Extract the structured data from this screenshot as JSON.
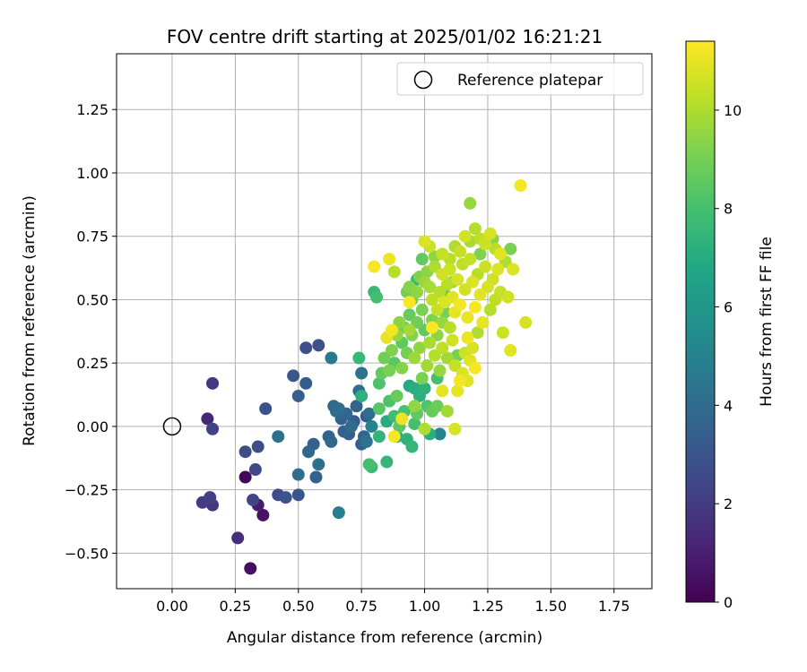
{
  "chart_data": {
    "type": "scatter",
    "title": "FOV centre drift starting at 2025/01/02 16:21:21",
    "xlabel": "Angular distance from reference (arcmin)",
    "ylabel": "Rotation from reference (arcmin)",
    "xlim": [
      -0.22,
      1.9
    ],
    "ylim": [
      -0.64,
      1.47
    ],
    "x_ticks": [
      0.0,
      0.25,
      0.5,
      0.75,
      1.0,
      1.25,
      1.5,
      1.75
    ],
    "x_tick_labels": [
      "0.00",
      "0.25",
      "0.50",
      "0.75",
      "1.00",
      "1.25",
      "1.50",
      "1.75"
    ],
    "y_ticks": [
      -0.5,
      -0.25,
      0.0,
      0.25,
      0.5,
      0.75,
      1.0,
      1.25
    ],
    "y_tick_labels": [
      "−0.50",
      "−0.25",
      "0.00",
      "0.25",
      "0.50",
      "0.75",
      "1.00",
      "1.25"
    ],
    "grid": true,
    "legend": {
      "placement": "top-right",
      "entries": [
        "Reference platepar"
      ]
    },
    "colorbar": {
      "label": "Hours from first FF file",
      "colormap": "viridis",
      "range": [
        0,
        11.4
      ],
      "ticks": [
        0,
        2,
        4,
        6,
        8,
        10
      ],
      "tick_labels": [
        "0",
        "2",
        "4",
        "6",
        "8",
        "10"
      ]
    },
    "reference_point": {
      "x": 0.0,
      "y": 0.0
    },
    "points": [
      {
        "x": 0.29,
        "y": -0.2,
        "c": 0.2
      },
      {
        "x": 0.31,
        "y": -0.56,
        "c": 0.5
      },
      {
        "x": 0.36,
        "y": -0.35,
        "c": 0.6
      },
      {
        "x": 0.34,
        "y": -0.31,
        "c": 0.9
      },
      {
        "x": 0.14,
        "y": 0.03,
        "c": 1.3
      },
      {
        "x": 0.26,
        "y": -0.44,
        "c": 1.5
      },
      {
        "x": 0.16,
        "y": -0.31,
        "c": 1.8
      },
      {
        "x": 0.12,
        "y": -0.3,
        "c": 2.0
      },
      {
        "x": 0.15,
        "y": -0.28,
        "c": 2.1
      },
      {
        "x": 0.16,
        "y": 0.17,
        "c": 1.9
      },
      {
        "x": 0.16,
        "y": -0.01,
        "c": 2.2
      },
      {
        "x": 0.32,
        "y": -0.29,
        "c": 2.3
      },
      {
        "x": 0.33,
        "y": -0.17,
        "c": 2.5
      },
      {
        "x": 0.29,
        "y": -0.1,
        "c": 2.6
      },
      {
        "x": 0.34,
        "y": -0.08,
        "c": 2.7
      },
      {
        "x": 0.42,
        "y": -0.27,
        "c": 2.6
      },
      {
        "x": 0.37,
        "y": 0.07,
        "c": 2.9
      },
      {
        "x": 0.45,
        "y": -0.28,
        "c": 3.0
      },
      {
        "x": 0.5,
        "y": -0.27,
        "c": 3.0
      },
      {
        "x": 0.53,
        "y": 0.31,
        "c": 2.7
      },
      {
        "x": 0.58,
        "y": 0.32,
        "c": 2.8
      },
      {
        "x": 0.48,
        "y": 0.2,
        "c": 3.1
      },
      {
        "x": 0.53,
        "y": 0.17,
        "c": 3.3
      },
      {
        "x": 0.5,
        "y": 0.12,
        "c": 3.4
      },
      {
        "x": 0.42,
        "y": -0.04,
        "c": 4.2
      },
      {
        "x": 0.5,
        "y": -0.19,
        "c": 4.1
      },
      {
        "x": 0.54,
        "y": -0.1,
        "c": 3.8
      },
      {
        "x": 0.56,
        "y": -0.07,
        "c": 3.5
      },
      {
        "x": 0.57,
        "y": -0.2,
        "c": 3.6
      },
      {
        "x": 0.58,
        "y": -0.15,
        "c": 4.2
      },
      {
        "x": 0.62,
        "y": -0.04,
        "c": 3.7
      },
      {
        "x": 0.63,
        "y": -0.06,
        "c": 3.8
      },
      {
        "x": 0.64,
        "y": 0.08,
        "c": 3.9
      },
      {
        "x": 0.65,
        "y": 0.06,
        "c": 4.0
      },
      {
        "x": 0.66,
        "y": 0.07,
        "c": 4.1
      },
      {
        "x": 0.67,
        "y": 0.03,
        "c": 3.5
      },
      {
        "x": 0.68,
        "y": -0.02,
        "c": 3.6
      },
      {
        "x": 0.69,
        "y": 0.05,
        "c": 3.8
      },
      {
        "x": 0.7,
        "y": -0.03,
        "c": 3.4
      },
      {
        "x": 0.71,
        "y": 0.0,
        "c": 3.9
      },
      {
        "x": 0.72,
        "y": 0.02,
        "c": 3.3
      },
      {
        "x": 0.73,
        "y": 0.08,
        "c": 3.6
      },
      {
        "x": 0.74,
        "y": 0.14,
        "c": 4.1
      },
      {
        "x": 0.75,
        "y": -0.07,
        "c": 3.4
      },
      {
        "x": 0.76,
        "y": -0.04,
        "c": 3.7
      },
      {
        "x": 0.77,
        "y": 0.04,
        "c": 3.2
      },
      {
        "x": 0.78,
        "y": 0.05,
        "c": 4.0
      },
      {
        "x": 0.66,
        "y": -0.34,
        "c": 4.8
      },
      {
        "x": 0.63,
        "y": 0.27,
        "c": 4.6
      },
      {
        "x": 0.75,
        "y": 0.21,
        "c": 4.3
      },
      {
        "x": 0.74,
        "y": 0.27,
        "c": 7.6
      },
      {
        "x": 0.75,
        "y": 0.12,
        "c": 7.2
      },
      {
        "x": 0.77,
        "y": -0.06,
        "c": 4.4
      },
      {
        "x": 0.79,
        "y": 0.0,
        "c": 5.0
      },
      {
        "x": 0.82,
        "y": -0.04,
        "c": 7.4
      },
      {
        "x": 0.8,
        "y": 0.53,
        "c": 7.6
      },
      {
        "x": 0.81,
        "y": 0.51,
        "c": 7.9
      },
      {
        "x": 0.78,
        "y": -0.15,
        "c": 8.0
      },
      {
        "x": 0.79,
        "y": -0.16,
        "c": 7.7
      },
      {
        "x": 0.85,
        "y": -0.14,
        "c": 7.5
      },
      {
        "x": 0.85,
        "y": 0.02,
        "c": 7.0
      },
      {
        "x": 0.86,
        "y": 0.1,
        "c": 8.2
      },
      {
        "x": 0.88,
        "y": 0.04,
        "c": 7.8
      },
      {
        "x": 0.9,
        "y": 0.0,
        "c": 8.5
      },
      {
        "x": 0.89,
        "y": -0.04,
        "c": 6.8
      },
      {
        "x": 0.92,
        "y": 0.06,
        "c": 8.1
      },
      {
        "x": 0.93,
        "y": -0.05,
        "c": 7.3
      },
      {
        "x": 0.95,
        "y": -0.08,
        "c": 7.5
      },
      {
        "x": 0.96,
        "y": 0.01,
        "c": 8.0
      },
      {
        "x": 0.97,
        "y": 0.05,
        "c": 8.6
      },
      {
        "x": 0.94,
        "y": 0.16,
        "c": 6.9
      },
      {
        "x": 0.96,
        "y": 0.15,
        "c": 7.1
      },
      {
        "x": 0.98,
        "y": 0.12,
        "c": 7.2
      },
      {
        "x": 1.0,
        "y": 0.15,
        "c": 7.3
      },
      {
        "x": 1.01,
        "y": 0.08,
        "c": 8.3
      },
      {
        "x": 1.03,
        "y": 0.06,
        "c": 8.7
      },
      {
        "x": 1.05,
        "y": 0.08,
        "c": 8.8
      },
      {
        "x": 1.06,
        "y": -0.03,
        "c": 5.2
      },
      {
        "x": 0.82,
        "y": 0.17,
        "c": 8.2
      },
      {
        "x": 0.83,
        "y": 0.21,
        "c": 8.6
      },
      {
        "x": 0.84,
        "y": 0.27,
        "c": 8.9
      },
      {
        "x": 0.86,
        "y": 0.22,
        "c": 9.1
      },
      {
        "x": 0.87,
        "y": 0.3,
        "c": 9.2
      },
      {
        "x": 0.88,
        "y": 0.25,
        "c": 8.4
      },
      {
        "x": 0.89,
        "y": 0.36,
        "c": 9.6
      },
      {
        "x": 0.9,
        "y": 0.41,
        "c": 9.4
      },
      {
        "x": 0.91,
        "y": 0.33,
        "c": 8.5
      },
      {
        "x": 0.92,
        "y": 0.39,
        "c": 8.8
      },
      {
        "x": 0.93,
        "y": 0.29,
        "c": 9.0
      },
      {
        "x": 0.94,
        "y": 0.44,
        "c": 8.7
      },
      {
        "x": 0.95,
        "y": 0.36,
        "c": 9.3
      },
      {
        "x": 0.96,
        "y": 0.27,
        "c": 9.7
      },
      {
        "x": 0.97,
        "y": 0.41,
        "c": 8.9
      },
      {
        "x": 0.98,
        "y": 0.31,
        "c": 9.5
      },
      {
        "x": 0.99,
        "y": 0.46,
        "c": 9.1
      },
      {
        "x": 1.0,
        "y": 0.38,
        "c": 8.6
      },
      {
        "x": 1.01,
        "y": 0.24,
        "c": 9.8
      },
      {
        "x": 1.02,
        "y": 0.33,
        "c": 9.9
      },
      {
        "x": 1.03,
        "y": 0.42,
        "c": 9.2
      },
      {
        "x": 1.04,
        "y": 0.28,
        "c": 10.1
      },
      {
        "x": 1.05,
        "y": 0.36,
        "c": 9.4
      },
      {
        "x": 1.06,
        "y": 0.22,
        "c": 9.6
      },
      {
        "x": 1.07,
        "y": 0.31,
        "c": 10.3
      },
      {
        "x": 1.08,
        "y": 0.45,
        "c": 9.0
      },
      {
        "x": 1.09,
        "y": 0.27,
        "c": 9.8
      },
      {
        "x": 1.1,
        "y": 0.39,
        "c": 10.2
      },
      {
        "x": 1.11,
        "y": 0.34,
        "c": 10.6
      },
      {
        "x": 1.12,
        "y": 0.24,
        "c": 10.4
      },
      {
        "x": 1.13,
        "y": 0.14,
        "c": 11.0
      },
      {
        "x": 1.14,
        "y": 0.18,
        "c": 11.2
      },
      {
        "x": 1.15,
        "y": 0.21,
        "c": 10.8
      },
      {
        "x": 1.16,
        "y": 0.29,
        "c": 10.5
      },
      {
        "x": 1.17,
        "y": 0.35,
        "c": 11.1
      },
      {
        "x": 1.18,
        "y": 0.26,
        "c": 10.9
      },
      {
        "x": 1.19,
        "y": 0.31,
        "c": 10.7
      },
      {
        "x": 1.2,
        "y": 0.23,
        "c": 11.3
      },
      {
        "x": 1.21,
        "y": 0.37,
        "c": 10.0
      },
      {
        "x": 0.93,
        "y": 0.53,
        "c": 9.0
      },
      {
        "x": 0.94,
        "y": 0.55,
        "c": 9.3
      },
      {
        "x": 0.95,
        "y": 0.5,
        "c": 8.9
      },
      {
        "x": 0.97,
        "y": 0.53,
        "c": 9.5
      },
      {
        "x": 0.98,
        "y": 0.59,
        "c": 9.2
      },
      {
        "x": 1.0,
        "y": 0.57,
        "c": 9.7
      },
      {
        "x": 1.01,
        "y": 0.61,
        "c": 9.4
      },
      {
        "x": 1.02,
        "y": 0.55,
        "c": 9.9
      },
      {
        "x": 1.03,
        "y": 0.5,
        "c": 10.3
      },
      {
        "x": 1.04,
        "y": 0.63,
        "c": 10.0
      },
      {
        "x": 1.05,
        "y": 0.46,
        "c": 10.4
      },
      {
        "x": 1.06,
        "y": 0.53,
        "c": 10.1
      },
      {
        "x": 1.07,
        "y": 0.6,
        "c": 10.6
      },
      {
        "x": 1.08,
        "y": 0.49,
        "c": 10.8
      },
      {
        "x": 1.09,
        "y": 0.56,
        "c": 10.2
      },
      {
        "x": 1.1,
        "y": 0.62,
        "c": 10.5
      },
      {
        "x": 1.11,
        "y": 0.51,
        "c": 10.9
      },
      {
        "x": 1.12,
        "y": 0.45,
        "c": 11.0
      },
      {
        "x": 1.13,
        "y": 0.58,
        "c": 10.7
      },
      {
        "x": 1.14,
        "y": 0.48,
        "c": 11.2
      },
      {
        "x": 1.15,
        "y": 0.64,
        "c": 10.3
      },
      {
        "x": 1.16,
        "y": 0.54,
        "c": 10.6
      },
      {
        "x": 1.17,
        "y": 0.43,
        "c": 11.1
      },
      {
        "x": 1.18,
        "y": 0.66,
        "c": 10.4
      },
      {
        "x": 1.19,
        "y": 0.57,
        "c": 10.8
      },
      {
        "x": 1.2,
        "y": 0.47,
        "c": 11.3
      },
      {
        "x": 1.21,
        "y": 0.6,
        "c": 10.2
      },
      {
        "x": 1.22,
        "y": 0.52,
        "c": 10.9
      },
      {
        "x": 1.23,
        "y": 0.41,
        "c": 11.0
      },
      {
        "x": 1.24,
        "y": 0.63,
        "c": 10.5
      },
      {
        "x": 1.25,
        "y": 0.55,
        "c": 10.7
      },
      {
        "x": 1.26,
        "y": 0.46,
        "c": 10.1
      },
      {
        "x": 1.27,
        "y": 0.58,
        "c": 10.6
      },
      {
        "x": 1.28,
        "y": 0.5,
        "c": 10.3
      },
      {
        "x": 1.29,
        "y": 0.62,
        "c": 10.8
      },
      {
        "x": 1.3,
        "y": 0.53,
        "c": 10.4
      },
      {
        "x": 1.1,
        "y": 0.66,
        "c": 10.2
      },
      {
        "x": 1.12,
        "y": 0.71,
        "c": 10.0
      },
      {
        "x": 1.14,
        "y": 0.69,
        "c": 10.4
      },
      {
        "x": 1.16,
        "y": 0.75,
        "c": 10.6
      },
      {
        "x": 1.18,
        "y": 0.73,
        "c": 9.9
      },
      {
        "x": 1.2,
        "y": 0.78,
        "c": 10.1
      },
      {
        "x": 1.22,
        "y": 0.74,
        "c": 10.3
      },
      {
        "x": 1.24,
        "y": 0.72,
        "c": 10.5
      },
      {
        "x": 1.26,
        "y": 0.76,
        "c": 10.7
      },
      {
        "x": 1.28,
        "y": 0.7,
        "c": 10.2
      },
      {
        "x": 1.3,
        "y": 0.68,
        "c": 10.9
      },
      {
        "x": 1.32,
        "y": 0.65,
        "c": 10.0
      },
      {
        "x": 1.34,
        "y": 0.7,
        "c": 9.1
      },
      {
        "x": 1.33,
        "y": 0.51,
        "c": 10.6
      },
      {
        "x": 1.35,
        "y": 0.62,
        "c": 10.8
      },
      {
        "x": 1.31,
        "y": 0.37,
        "c": 10.5
      },
      {
        "x": 1.34,
        "y": 0.3,
        "c": 10.9
      },
      {
        "x": 1.4,
        "y": 0.41,
        "c": 10.7
      },
      {
        "x": 1.38,
        "y": 0.95,
        "c": 11.2
      },
      {
        "x": 1.18,
        "y": 0.88,
        "c": 9.6
      },
      {
        "x": 1.02,
        "y": 0.71,
        "c": 10.5
      },
      {
        "x": 1.0,
        "y": 0.73,
        "c": 10.8
      },
      {
        "x": 0.86,
        "y": 0.66,
        "c": 11.1
      },
      {
        "x": 0.8,
        "y": 0.63,
        "c": 11.3
      },
      {
        "x": 0.88,
        "y": 0.61,
        "c": 10.2
      },
      {
        "x": 1.04,
        "y": 0.67,
        "c": 9.5
      },
      {
        "x": 1.07,
        "y": 0.68,
        "c": 10.4
      },
      {
        "x": 0.85,
        "y": 0.35,
        "c": 11.0
      },
      {
        "x": 0.87,
        "y": 0.38,
        "c": 11.2
      },
      {
        "x": 0.88,
        "y": -0.04,
        "c": 11.2
      },
      {
        "x": 0.91,
        "y": 0.03,
        "c": 11.1
      },
      {
        "x": 0.94,
        "y": 0.49,
        "c": 11.3
      },
      {
        "x": 1.03,
        "y": 0.39,
        "c": 11.4
      },
      {
        "x": 1.07,
        "y": 0.14,
        "c": 11.0
      },
      {
        "x": 1.17,
        "y": 0.18,
        "c": 10.9
      },
      {
        "x": 1.12,
        "y": -0.01,
        "c": 10.7
      },
      {
        "x": 0.96,
        "y": 0.08,
        "c": 9.5
      },
      {
        "x": 1.0,
        "y": -0.01,
        "c": 10.0
      },
      {
        "x": 1.09,
        "y": 0.06,
        "c": 9.8
      },
      {
        "x": 0.82,
        "y": 0.07,
        "c": 8.4
      },
      {
        "x": 0.89,
        "y": 0.12,
        "c": 8.7
      },
      {
        "x": 1.05,
        "y": 0.19,
        "c": 8.0
      },
      {
        "x": 1.13,
        "y": 0.28,
        "c": 9.0
      },
      {
        "x": 0.91,
        "y": 0.23,
        "c": 9.3
      },
      {
        "x": 0.99,
        "y": 0.19,
        "c": 9.1
      },
      {
        "x": 1.07,
        "y": 0.41,
        "c": 9.6
      },
      {
        "x": 0.94,
        "y": 0.38,
        "c": 9.8
      },
      {
        "x": 1.11,
        "y": 0.57,
        "c": 9.7
      },
      {
        "x": 1.22,
        "y": 0.68,
        "c": 9.2
      },
      {
        "x": 1.27,
        "y": 0.74,
        "c": 9.4
      },
      {
        "x": 1.02,
        "y": -0.03,
        "c": 7.1
      },
      {
        "x": 0.97,
        "y": 0.58,
        "c": 7.5
      },
      {
        "x": 1.08,
        "y": 0.52,
        "c": 8.3
      },
      {
        "x": 0.99,
        "y": 0.66,
        "c": 8.6
      }
    ]
  }
}
